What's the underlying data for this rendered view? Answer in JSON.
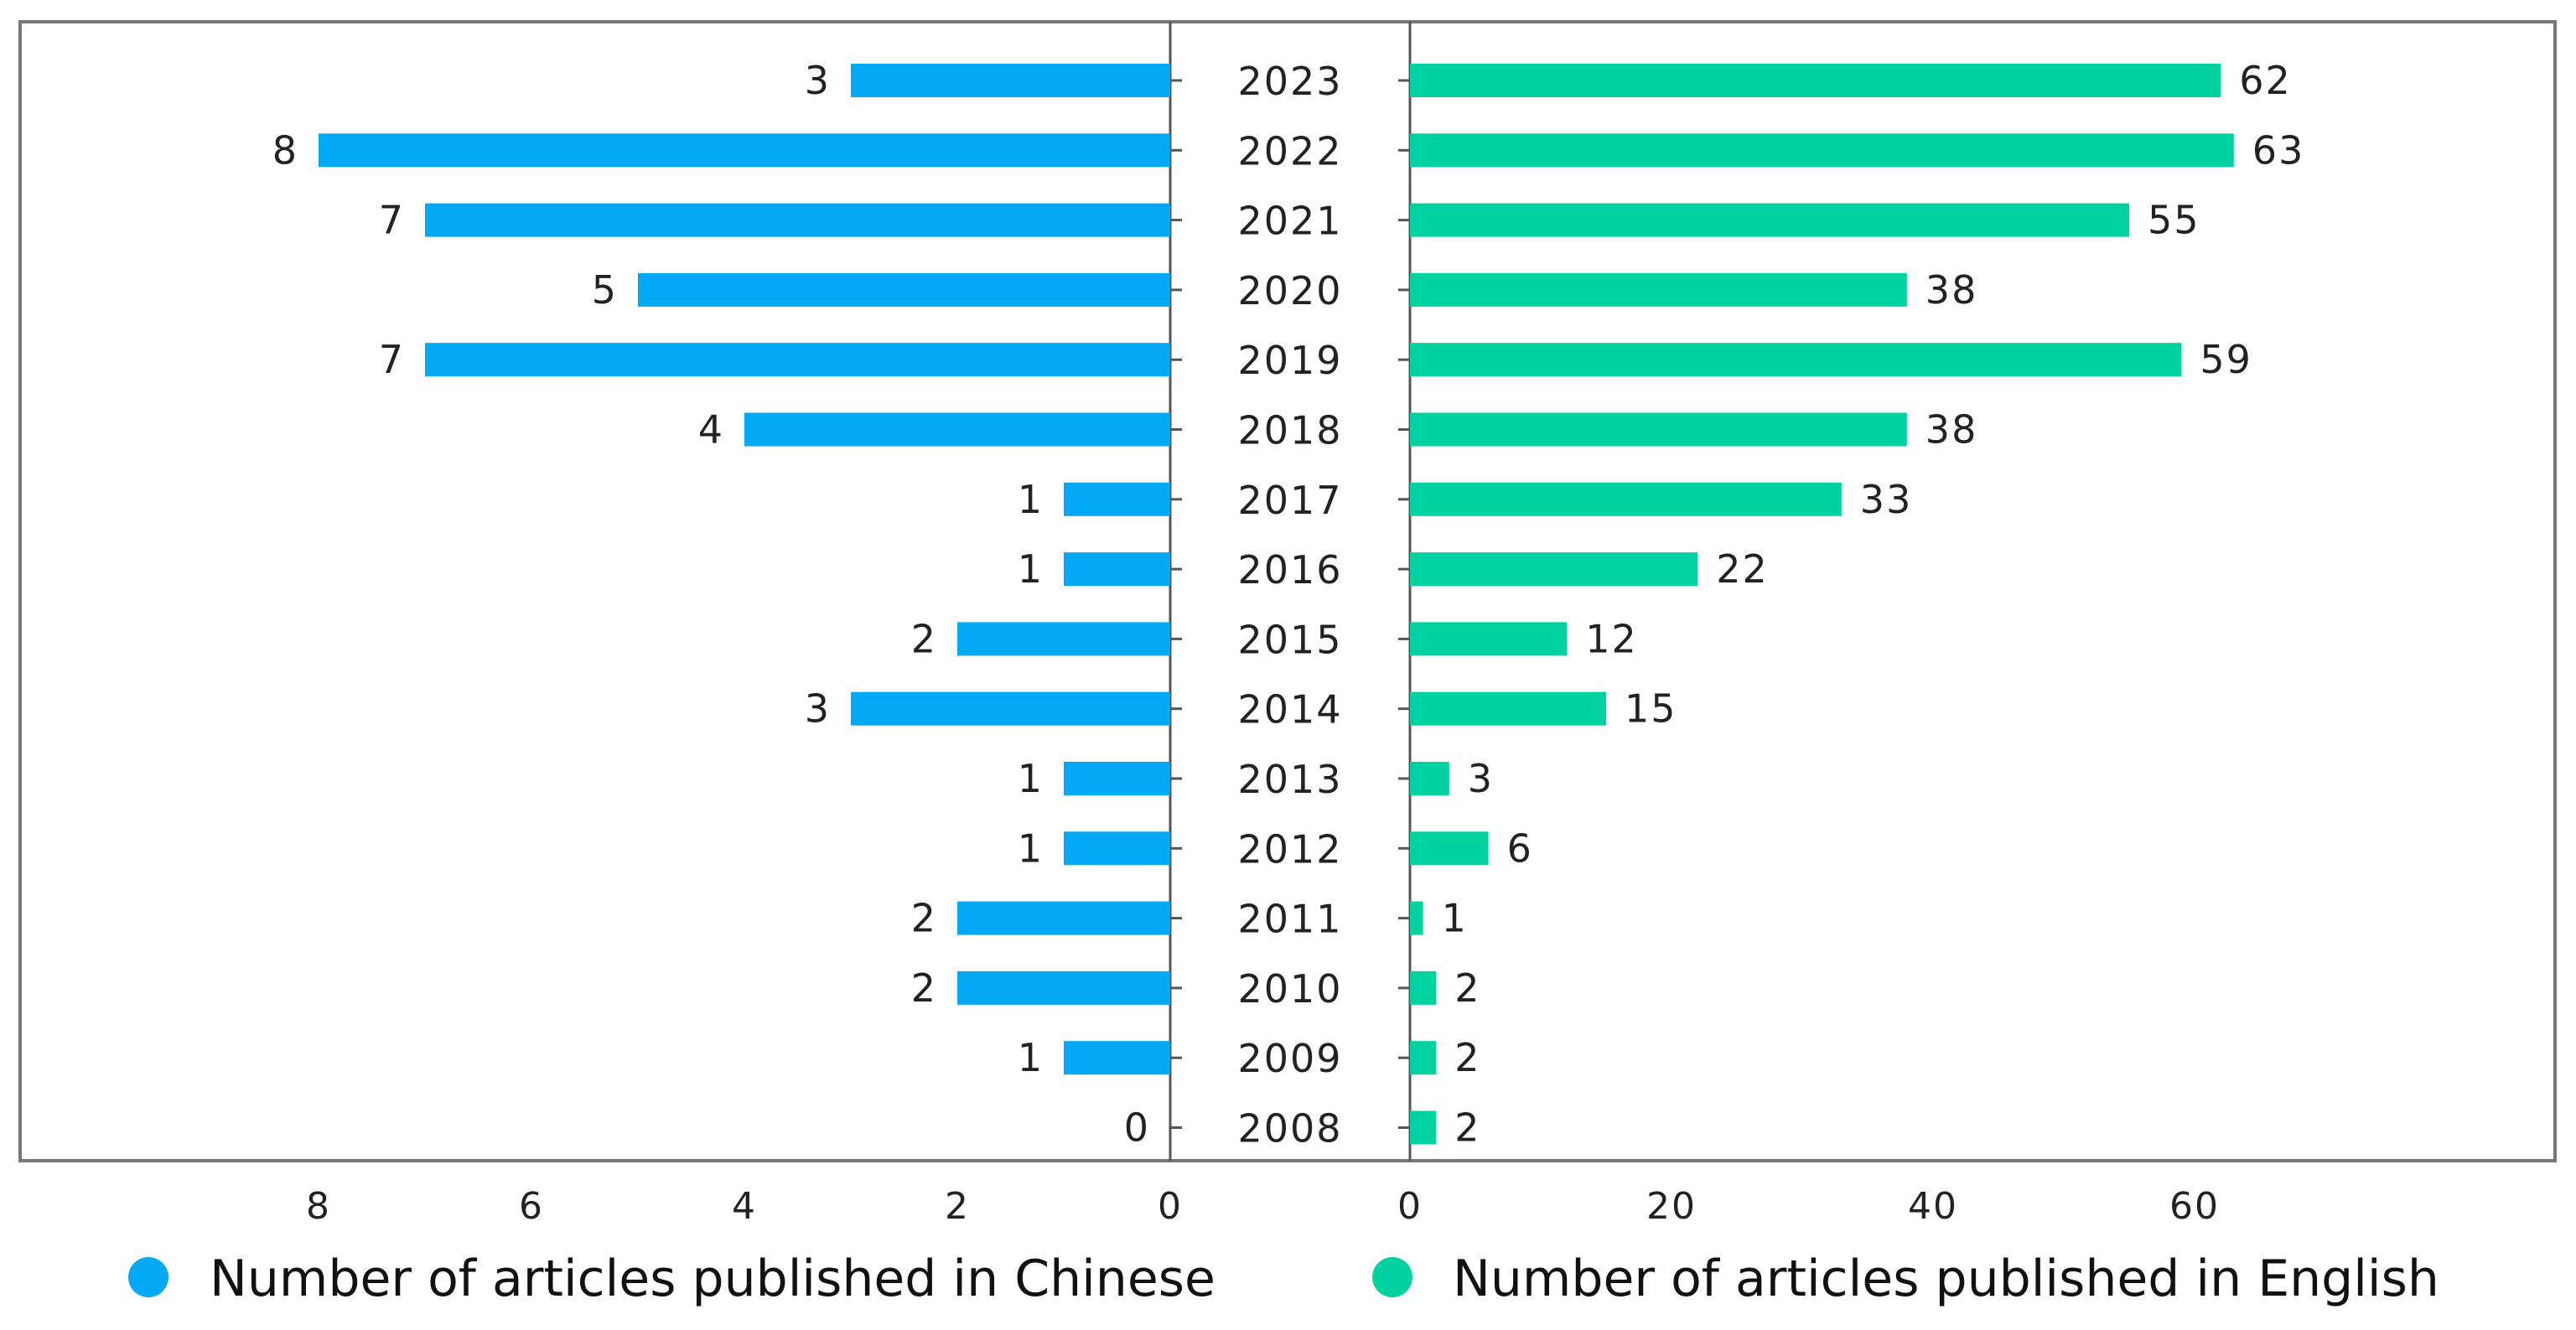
{
  "chart_data": {
    "type": "bar",
    "orientation": "horizontal",
    "layout": "back-to-back",
    "categories": [
      "2023",
      "2022",
      "2021",
      "2020",
      "2019",
      "2018",
      "2017",
      "2016",
      "2015",
      "2014",
      "2013",
      "2012",
      "2011",
      "2010",
      "2009",
      "2008"
    ],
    "series": [
      {
        "name": "Number of articles published in Chinese",
        "color": "#03A9F4",
        "side": "left",
        "values": [
          3,
          8,
          7,
          5,
          7,
          4,
          1,
          1,
          2,
          3,
          1,
          1,
          2,
          2,
          1,
          0
        ],
        "xlim": [
          0,
          10.5
        ],
        "ticks": [
          0,
          2,
          4,
          6,
          8
        ]
      },
      {
        "name": "Number of articles published in English",
        "color": "#00D1A0",
        "side": "right",
        "values": [
          62,
          63,
          55,
          38,
          59,
          38,
          33,
          22,
          12,
          15,
          3,
          6,
          1,
          2,
          2,
          2
        ],
        "xlim": [
          0,
          90
        ],
        "ticks": [
          0,
          20,
          40,
          60
        ]
      }
    ],
    "legend_position": "bottom",
    "grid": false
  }
}
